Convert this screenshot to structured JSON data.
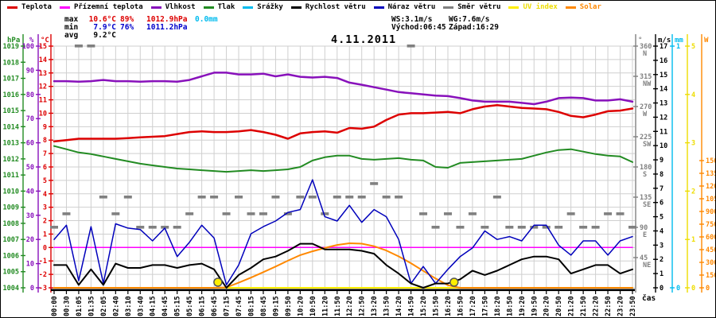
{
  "legend": [
    {
      "label": "Teplota",
      "color": "#dd0000",
      "label_color": "#000000"
    },
    {
      "label": "Přízemní teplota",
      "color": "#ff00ff",
      "label_color": "#000000"
    },
    {
      "label": "Vlhkost",
      "color": "#8811bb",
      "label_color": "#000000"
    },
    {
      "label": "Tlak",
      "color": "#228b22",
      "label_color": "#000000"
    },
    {
      "label": "Srážky",
      "color": "#00bbee",
      "label_color": "#000000"
    },
    {
      "label": "Rychlost větru",
      "color": "#000000",
      "label_color": "#000000"
    },
    {
      "label": "Náraz větru",
      "color": "#0000bb",
      "label_color": "#000000"
    },
    {
      "label": "Směr větru",
      "color": "#808080",
      "label_color": "#000000"
    },
    {
      "label": "UV index",
      "color": "#ffee00",
      "label_color": "#eedd00"
    },
    {
      "label": "Solar",
      "color": "#ff8800",
      "label_color": "#ff8800"
    }
  ],
  "stats": {
    "max_label": "max",
    "max_temp": "10.6°C",
    "max_hum": "89%",
    "max_press": "1012.9hPa",
    "max_rain": "0.0mm",
    "min_label": "min",
    "min_temp": "7.9°C",
    "min_hum": "76%",
    "min_press": "1011.2hPa",
    "avg_label": "avg",
    "avg_temp": "9.2°C",
    "ws": "WS:3.1m/s",
    "wg": "WG:7.6m/s",
    "sunrise": "Východ:06:45",
    "sunset": "Západ:16:29"
  },
  "chart_data": {
    "type": "line",
    "title": "4.11.2011",
    "xlabel": "čas",
    "grid": true,
    "x": [
      "00:00",
      "00:30",
      "01:05",
      "01:35",
      "02:05",
      "02:40",
      "03:10",
      "03:40",
      "04:15",
      "04:45",
      "05:15",
      "05:45",
      "06:15",
      "06:45",
      "07:15",
      "07:45",
      "08:15",
      "08:45",
      "09:15",
      "09:50",
      "10:20",
      "10:50",
      "11:20",
      "11:50",
      "12:20",
      "12:50",
      "13:20",
      "13:50",
      "14:20",
      "14:50",
      "15:20",
      "15:50",
      "16:20",
      "16:50",
      "17:20",
      "17:50",
      "18:20",
      "18:50",
      "19:20",
      "19:50",
      "20:20",
      "20:50",
      "21:20",
      "21:50",
      "22:20",
      "22:50",
      "23:20",
      "23:50"
    ],
    "sun_markers": [
      "06:45",
      "16:29"
    ],
    "axes": {
      "temperature": {
        "unit": "°C",
        "color": "#dd0000",
        "min": -3,
        "max": 15,
        "ticks": [
          -3,
          -2,
          -1,
          0,
          1,
          2,
          3,
          4,
          5,
          6,
          7,
          8,
          9,
          10,
          11,
          12,
          13,
          14,
          15
        ]
      },
      "humidity": {
        "unit": "%",
        "color": "#8811bb",
        "min": 0,
        "max": 100,
        "ticks": [
          0,
          10,
          20,
          30,
          40,
          50,
          60,
          70,
          80,
          90,
          100
        ]
      },
      "pressure": {
        "unit": "hPa",
        "color": "#228b22",
        "min": 1004,
        "max": 1019,
        "ticks": [
          1004,
          1005,
          1006,
          1007,
          1008,
          1009,
          1010,
          1011,
          1012,
          1013,
          1014,
          1015,
          1016,
          1017,
          1018,
          1019
        ]
      },
      "wind_direction": {
        "unit": "°",
        "color": "#808080",
        "min": 0,
        "max": 360,
        "ticks": [
          45,
          90,
          135,
          180,
          225,
          270,
          315,
          360
        ],
        "cardinals": [
          "NE",
          "E",
          "SE",
          "S",
          "SW",
          "W",
          "NW",
          "N"
        ]
      },
      "wind": {
        "unit": "m/s",
        "color": "#000000",
        "min": 0,
        "max": 17,
        "ticks": [
          0,
          1,
          2,
          3,
          4,
          5,
          6,
          7,
          8,
          9,
          10,
          11,
          12,
          13,
          14,
          15,
          16,
          17
        ]
      },
      "precipitation": {
        "unit": "mm",
        "color": "#00bbee",
        "min": 0,
        "max": 1,
        "ticks": [
          0,
          1
        ]
      },
      "uv": {
        "unit": "",
        "color": "#eedd00",
        "min": 0,
        "max": 5,
        "ticks": [
          0,
          1,
          2,
          3,
          4,
          5
        ]
      },
      "solar": {
        "unit": "W",
        "color": "#ff8800",
        "min": 0,
        "max": 2850,
        "ticks": [
          0,
          150,
          300,
          450,
          600,
          750,
          900,
          1050,
          1200,
          1350,
          1500
        ]
      }
    },
    "series": [
      {
        "name": "Směr větru",
        "axis": "wind_direction",
        "color": "#808080",
        "style": "points",
        "values": [
          90,
          110,
          360,
          360,
          135,
          110,
          135,
          90,
          90,
          90,
          90,
          110,
          135,
          135,
          110,
          135,
          110,
          110,
          135,
          110,
          135,
          135,
          110,
          135,
          135,
          135,
          155,
          135,
          135,
          360,
          110,
          90,
          110,
          90,
          110,
          90,
          135,
          90,
          90,
          90,
          90,
          90,
          110,
          90,
          90,
          110,
          110,
          90
        ]
      },
      {
        "name": "Srážky",
        "axis": "precipitation",
        "color": "#00bbee",
        "width": 1,
        "values": [
          0,
          0,
          0,
          0,
          0,
          0,
          0,
          0,
          0,
          0,
          0,
          0,
          0,
          0,
          0,
          0,
          0,
          0,
          0,
          0,
          0,
          0,
          0,
          0,
          0,
          0,
          0,
          0,
          0,
          0,
          0,
          0,
          0,
          0,
          0,
          0,
          0,
          0,
          0,
          0,
          0,
          0,
          0,
          0,
          0,
          0,
          0,
          0
        ]
      },
      {
        "name": "UV index",
        "axis": "uv",
        "color": "#ffee00",
        "width": 2,
        "values": [
          0,
          0,
          0,
          0,
          0,
          0,
          0,
          0,
          0,
          0,
          0,
          0,
          0,
          0,
          0,
          0,
          0,
          0,
          0,
          0,
          0,
          0,
          0,
          0,
          0,
          0,
          0,
          0,
          0,
          0,
          0,
          0,
          0,
          0,
          0,
          0,
          0,
          0,
          0,
          0,
          0,
          0,
          0,
          0,
          0,
          0,
          0,
          0
        ]
      },
      {
        "name": "Přízemní teplota",
        "axis": "temperature",
        "color": "#ff00ff",
        "width": 1.5,
        "values": [
          0,
          0,
          0,
          0,
          0,
          0,
          0,
          0,
          0,
          0,
          0,
          0,
          0,
          0,
          0,
          0,
          0,
          0,
          0,
          0,
          0,
          0,
          0,
          0,
          0,
          0,
          0,
          0,
          0,
          0,
          0,
          0,
          0,
          0,
          0,
          0,
          0,
          0,
          0,
          0,
          0,
          0,
          0,
          0,
          0,
          0,
          0,
          0
        ]
      },
      {
        "name": "Solar",
        "axis": "solar",
        "color": "#ff8800",
        "width": 2,
        "values": [
          0,
          0,
          0,
          0,
          0,
          0,
          0,
          0,
          0,
          0,
          0,
          0,
          0,
          0,
          5,
          60,
          120,
          185,
          250,
          320,
          385,
          430,
          470,
          505,
          525,
          520,
          490,
          440,
          370,
          290,
          200,
          110,
          30,
          0,
          0,
          0,
          0,
          0,
          0,
          0,
          0,
          0,
          0,
          0,
          0,
          0,
          0,
          0
        ]
      },
      {
        "name": "Tlak",
        "axis": "pressure",
        "color": "#228b22",
        "width": 2,
        "values": [
          1012.8,
          1012.6,
          1012.4,
          1012.3,
          1012.15,
          1012.0,
          1011.85,
          1011.7,
          1011.6,
          1011.5,
          1011.4,
          1011.35,
          1011.3,
          1011.25,
          1011.2,
          1011.25,
          1011.3,
          1011.25,
          1011.3,
          1011.35,
          1011.5,
          1011.9,
          1012.1,
          1012.2,
          1012.2,
          1012.0,
          1011.95,
          1012.0,
          1012.05,
          1011.95,
          1011.9,
          1011.5,
          1011.45,
          1011.75,
          1011.8,
          1011.85,
          1011.9,
          1011.95,
          1012.0,
          1012.2,
          1012.4,
          1012.55,
          1012.6,
          1012.45,
          1012.3,
          1012.2,
          1012.15,
          1011.8
        ]
      },
      {
        "name": "Vlhkost",
        "axis": "humidity",
        "color": "#8811bb",
        "width": 2.5,
        "values": [
          85.5,
          85.5,
          85.3,
          85.5,
          86,
          85.5,
          85.5,
          85.3,
          85.5,
          85.5,
          85.3,
          86,
          87.5,
          89,
          89,
          88.3,
          88.3,
          88.6,
          87.5,
          88.3,
          87.3,
          87,
          87.3,
          86.8,
          84.9,
          84,
          83,
          82,
          81,
          80.5,
          80,
          79.5,
          79.3,
          78.5,
          77.5,
          77,
          77,
          77,
          76.5,
          76,
          77,
          78.5,
          78.7,
          78.5,
          77.5,
          77.5,
          78,
          77
        ]
      },
      {
        "name": "Teplota",
        "axis": "temperature",
        "color": "#dd0000",
        "width": 2.5,
        "values": [
          7.9,
          8.0,
          8.1,
          8.1,
          8.1,
          8.1,
          8.15,
          8.2,
          8.25,
          8.3,
          8.45,
          8.6,
          8.65,
          8.6,
          8.6,
          8.65,
          8.75,
          8.6,
          8.4,
          8.1,
          8.5,
          8.6,
          8.65,
          8.55,
          8.9,
          8.85,
          9.0,
          9.5,
          9.9,
          10.0,
          10.0,
          10.05,
          10.1,
          10.0,
          10.3,
          10.5,
          10.6,
          10.5,
          10.4,
          10.35,
          10.3,
          10.1,
          9.8,
          9.7,
          9.9,
          10.15,
          10.2,
          10.35
        ]
      },
      {
        "name": "Náraz větru",
        "axis": "wind",
        "color": "#0000bb",
        "width": 1.5,
        "values": [
          3.4,
          4.4,
          0.5,
          4.3,
          0.3,
          4.5,
          4.2,
          4.1,
          3.3,
          4.2,
          2.2,
          3.2,
          4.4,
          3.5,
          0.2,
          1.6,
          3.8,
          4.3,
          4.7,
          5.3,
          5.5,
          7.6,
          5.0,
          4.7,
          5.8,
          4.6,
          5.5,
          5.0,
          3.4,
          0.3,
          1.5,
          0.3,
          1.3,
          2.2,
          2.8,
          4.0,
          3.4,
          3.6,
          3.3,
          4.4,
          4.4,
          3.0,
          2.3,
          3.3,
          3.3,
          2.3,
          3.3,
          3.6
        ]
      },
      {
        "name": "Rychlost větru",
        "axis": "wind",
        "color": "#000000",
        "width": 2,
        "values": [
          1.6,
          1.6,
          0.2,
          1.3,
          0.2,
          1.7,
          1.4,
          1.4,
          1.6,
          1.6,
          1.4,
          1.6,
          1.7,
          1.3,
          0.0,
          0.9,
          1.4,
          2.0,
          2.2,
          2.6,
          3.1,
          3.1,
          2.7,
          2.7,
          2.7,
          2.6,
          2.4,
          1.6,
          1.0,
          0.3,
          0.0,
          0.3,
          0.3,
          0.6,
          1.2,
          0.9,
          1.2,
          1.6,
          2.0,
          2.2,
          2.2,
          2.0,
          1.0,
          1.3,
          1.6,
          1.6,
          1.0,
          1.3
        ]
      }
    ]
  }
}
